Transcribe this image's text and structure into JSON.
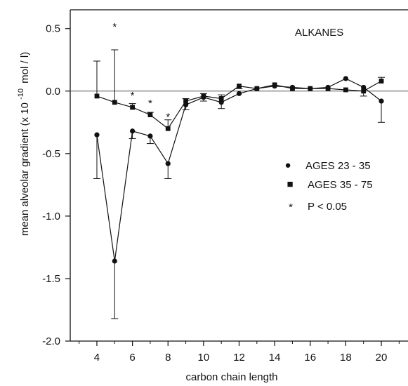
{
  "chart_data": {
    "type": "line",
    "annotation": "ALKANES",
    "xlabel": "carbon chain length",
    "ylabel_main": "mean alveolar gradient  (x 10",
    "ylabel_exp": "-10",
    "ylabel_unit": "mol / l)",
    "xlim": [
      2.5,
      21.5
    ],
    "ylim": [
      -2.0,
      0.65
    ],
    "x_ticks": [
      4,
      6,
      8,
      10,
      12,
      14,
      16,
      18,
      20
    ],
    "x_tick_labels": [
      "4",
      "6",
      "8",
      "10",
      "12",
      "14",
      "16",
      "18",
      "20"
    ],
    "y_ticks": [
      0.5,
      0.0,
      -0.5,
      -1.0,
      -1.5,
      -2.0
    ],
    "y_tick_labels": [
      "0.5",
      "0.0",
      "-0.5",
      "-1.0",
      "-1.5",
      "-2.0"
    ],
    "zero_line": true,
    "series": [
      {
        "name": "AGES 23 - 35",
        "marker": "circle",
        "x": [
          4,
          5,
          6,
          7,
          8,
          9,
          10,
          11,
          12,
          13,
          14,
          15,
          16,
          17,
          18,
          19,
          20
        ],
        "y": [
          -0.35,
          -1.36,
          -0.32,
          -0.36,
          -0.58,
          -0.11,
          -0.05,
          -0.09,
          -0.02,
          0.02,
          0.04,
          0.03,
          0.02,
          0.03,
          0.1,
          0.03,
          -0.08
        ],
        "err": [
          0.35,
          0.46,
          0.06,
          0.06,
          0.12,
          0.04,
          0.03,
          0.05,
          0.0,
          0.0,
          0.0,
          0.0,
          0.0,
          0.0,
          0.0,
          0.0,
          0.17
        ],
        "err_dir": [
          "down",
          "down",
          "down",
          "down",
          "down",
          "down",
          "down",
          "down",
          "down",
          "down",
          "down",
          "down",
          "down",
          "down",
          "down",
          "down",
          "down"
        ]
      },
      {
        "name": "AGES 35 - 75",
        "marker": "square",
        "x": [
          4,
          5,
          6,
          7,
          8,
          9,
          10,
          11,
          12,
          13,
          14,
          15,
          16,
          17,
          18,
          19,
          20
        ],
        "y": [
          -0.04,
          -0.09,
          -0.13,
          -0.19,
          -0.3,
          -0.08,
          -0.04,
          -0.06,
          0.04,
          0.02,
          0.05,
          0.02,
          0.02,
          0.02,
          0.01,
          0.0,
          0.08
        ],
        "err": [
          0.28,
          0.42,
          0.03,
          0.02,
          0.07,
          0.02,
          0.02,
          0.03,
          0.02,
          0.0,
          0.0,
          0.0,
          0.0,
          0.0,
          0.0,
          0.04,
          0.03
        ],
        "err_dir": [
          "up",
          "up",
          "up",
          "up",
          "up",
          "up",
          "up",
          "up",
          "down",
          "down",
          "down",
          "down",
          "down",
          "down",
          "down",
          "down",
          "up"
        ]
      }
    ],
    "significance": {
      "symbol": "*",
      "label": "P < 0.05",
      "x": [
        5,
        6,
        7,
        8
      ],
      "y": [
        0.52,
        -0.03,
        -0.09,
        -0.2
      ]
    },
    "legend": {
      "placement": "right",
      "entries": [
        {
          "symbol": "●",
          "label": "AGES 23 - 35"
        },
        {
          "symbol": "■",
          "label": "AGES 35 - 75"
        },
        {
          "symbol": "*",
          "label": "P < 0.05"
        }
      ]
    }
  }
}
